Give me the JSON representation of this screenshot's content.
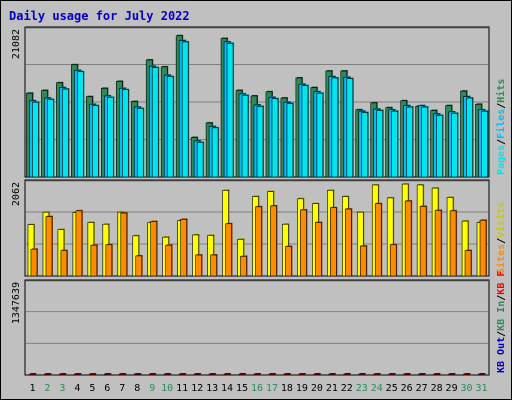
{
  "chart_data": {
    "type": "bar",
    "title": "Daily usage for July 2022",
    "colors": {
      "background": "#c0c0c0",
      "plot_background": "#c0c0c0",
      "title": "#0000cc",
      "hits": "#2e8b57",
      "files": "#00bfff",
      "pages": "#00e5ee",
      "visits": "#ffff00",
      "sites": "#ff8c00",
      "kbin": "#2e8b57",
      "kbout": "#0000cc",
      "kbf": "#ff0000",
      "weekday_label": "#000000",
      "weekend_label": "#2e8b57"
    },
    "categories": [
      "1",
      "2",
      "3",
      "4",
      "5",
      "6",
      "7",
      "8",
      "9",
      "10",
      "11",
      "12",
      "13",
      "14",
      "15",
      "16",
      "17",
      "18",
      "19",
      "20",
      "21",
      "22",
      "23",
      "24",
      "25",
      "26",
      "27",
      "28",
      "29",
      "30",
      "31"
    ],
    "weekend_days": [
      "2",
      "3",
      "9",
      "10",
      "16",
      "17",
      "23",
      "24",
      "30",
      "31"
    ],
    "panels": [
      {
        "name": "hits-files-pages",
        "y_max_label": "21082",
        "ymax": 21082,
        "legend": [
          {
            "text": "Hits",
            "color": "#2e8b57"
          },
          {
            "text": "/",
            "color": "#000000"
          },
          {
            "text": "Files",
            "color": "#00bfff"
          },
          {
            "text": "/",
            "color": "#000000"
          },
          {
            "text": "Pages",
            "color": "#00e5ee"
          }
        ],
        "series": [
          {
            "name": "Hits",
            "color": "#2e8b57",
            "values": [
              12100,
              12500,
              13600,
              16200,
              11600,
              12800,
              13800,
              10900,
              16900,
              15900,
              20400,
              5700,
              7800,
              20000,
              12500,
              11700,
              12300,
              11400,
              14300,
              12900,
              15300,
              15300,
              9700,
              10700,
              10000,
              11000,
              10200,
              9600,
              10300,
              12400,
              10500
            ]
          },
          {
            "name": "Files",
            "color": "#00bfff",
            "values": [
              11000,
              11400,
              12900,
              15400,
              10500,
              11700,
              12800,
              10100,
              16000,
              14700,
              19700,
              5200,
              7300,
              19500,
              12000,
              10400,
              11500,
              10800,
              13400,
              12300,
              14500,
              14400,
              9500,
              9800,
              9700,
              10300,
              10300,
              9100,
              9400,
              11600,
              9700
            ]
          },
          {
            "name": "Pages",
            "color": "#00e5ee",
            "values": [
              10800,
              11200,
              12700,
              15200,
              10300,
              11500,
              12600,
              9900,
              15800,
              14500,
              19500,
              5000,
              7100,
              19300,
              11800,
              10200,
              11300,
              10600,
              13200,
              12100,
              14300,
              14200,
              9300,
              9600,
              9500,
              10100,
              10100,
              8900,
              9200,
              11400,
              9500
            ]
          }
        ]
      },
      {
        "name": "visits-sites",
        "y_max_label": "2062",
        "ymax": 2062,
        "legend": [
          {
            "text": "Visits",
            "color": "#c8c800"
          },
          {
            "text": "/",
            "color": "#000000"
          },
          {
            "text": "Sites",
            "color": "#ff8c00"
          }
        ],
        "series": [
          {
            "name": "Visits",
            "color": "#ffff00",
            "values": [
              1150,
              1430,
              1040,
              1420,
              1200,
              1160,
              1430,
              900,
              1200,
              870,
              1240,
              920,
              910,
              1920,
              820,
              1780,
              1890,
              1160,
              1730,
              1620,
              1920,
              1780,
              1430,
              2040,
              1750,
              2060,
              2040,
              1970,
              1760,
              1230,
              1200
            ]
          },
          {
            "name": "Sites",
            "color": "#ff8c00",
            "values": [
              600,
              1330,
              570,
              1460,
              690,
              700,
              1410,
              450,
              1220,
              690,
              1270,
              470,
              470,
              1170,
              440,
              1550,
              1570,
              660,
              1480,
              1200,
              1530,
              1500,
              670,
              1620,
              700,
              1680,
              1560,
              1470,
              1460,
              570,
              1250
            ]
          }
        ]
      },
      {
        "name": "kbf",
        "y_max_label": "1347639",
        "ymax": 1347639,
        "legend": [
          {
            "text": "KB F",
            "color": "#ff0000"
          },
          {
            "text": "/",
            "color": "#000000"
          },
          {
            "text": "KB In",
            "color": "#2e8b57"
          },
          {
            "text": "/",
            "color": "#000000"
          },
          {
            "text": "KB Out",
            "color": "#0000cc"
          }
        ],
        "series": [
          {
            "name": "KB F",
            "color": "#ff0000",
            "values": [
              950,
              1060,
              1060,
              1290,
              1110,
              1220,
              1200,
              840,
              900,
              850,
              790,
              460,
              890,
              1140,
              940,
              920,
              920,
              1320,
              1350,
              1190,
              1380,
              1340,
              840,
              840,
              730,
              1120,
              1180,
              1180,
              1040,
              1100,
              960
            ]
          }
        ]
      }
    ]
  }
}
